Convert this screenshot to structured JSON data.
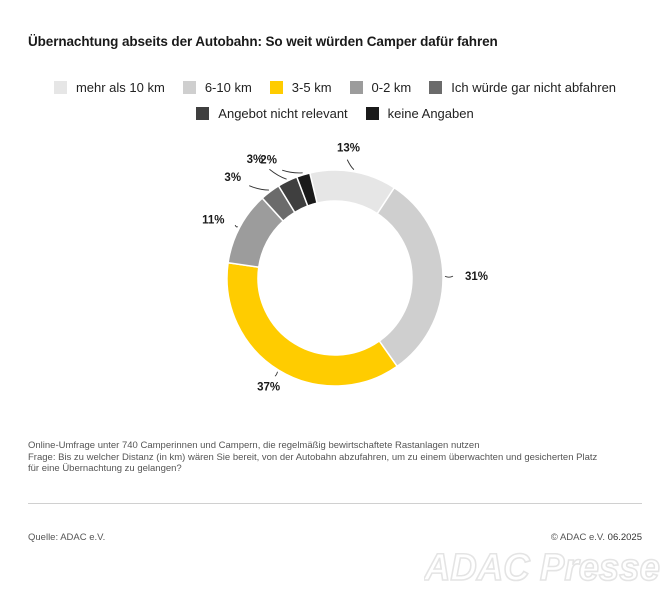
{
  "title": "Übernachtung abseits der Autobahn: So weit würden Camper dafür fahren",
  "chart_data": {
    "type": "pie",
    "style": "donut",
    "title": "Übernachtung abseits der Autobahn: So weit würden Camper dafür fahren",
    "legend_position": "top",
    "categories": [
      "mehr als 10 km",
      "6-10 km",
      "3-5 km",
      "0-2 km",
      "Ich würde gar nicht abfahren",
      "Angebot nicht relevant",
      "keine Angaben"
    ],
    "values": [
      13,
      31,
      37,
      11,
      3,
      3,
      2
    ],
    "labels": [
      "13%",
      "31%",
      "37%",
      "11%",
      "3%",
      "3%",
      "2%"
    ],
    "colors": [
      "#e6e6e6",
      "#cfcfcf",
      "#ffcc00",
      "#9c9c9c",
      "#6b6b6b",
      "#3f3f3f",
      "#1a1a1a"
    ]
  },
  "notes": {
    "line1": "Online-Umfrage unter 740 Camperinnen und Campern, die regelmäßig bewirtschaftete Rastanlagen nutzen",
    "line2": "Frage: Bis zu welcher Distanz (in km) wären Sie bereit, von der Autobahn abzufahren, um zu einem überwachten und gesicherten Platz",
    "line3": "für eine Übernachtung zu gelangen?"
  },
  "footer": {
    "source": "Quelle: ADAC e.V.",
    "copyright_prefix": "© ADAC e.V.",
    "date": "06.2025",
    "watermark": "ADAC Presse"
  }
}
